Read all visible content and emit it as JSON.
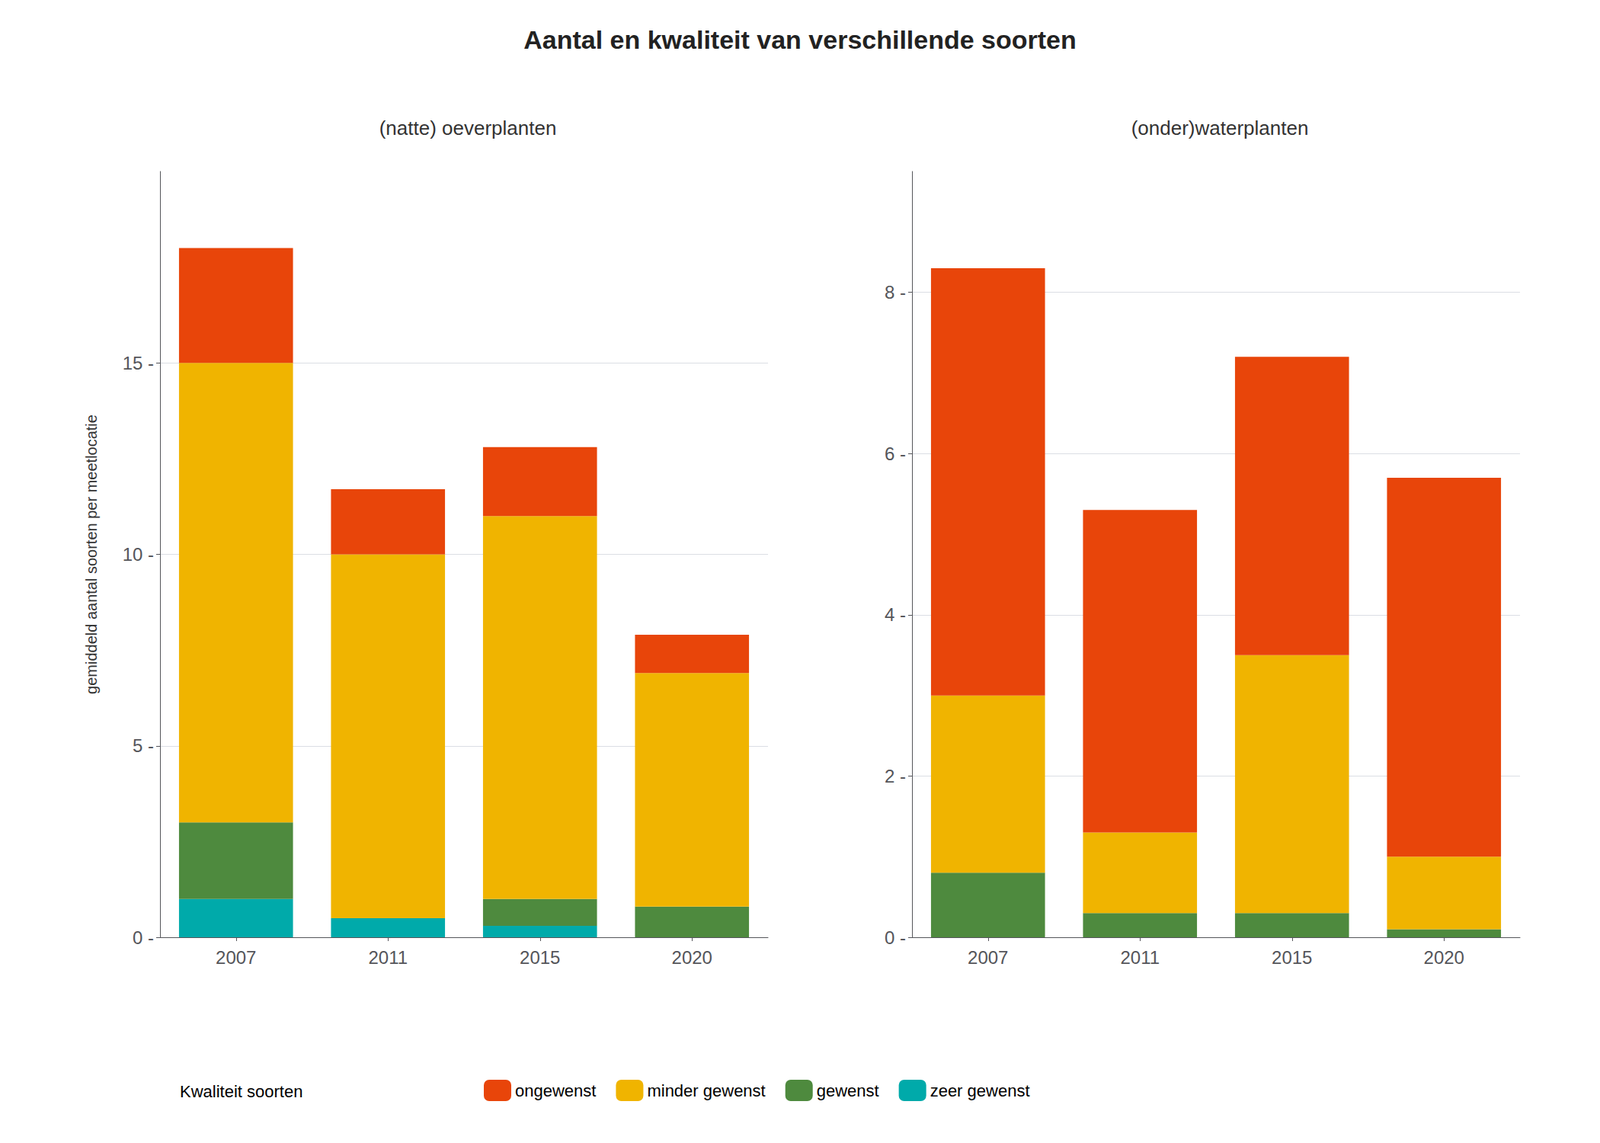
{
  "chart_data": [
    {
      "type": "bar",
      "title": "Aantal en kwaliteit van verschillende soorten",
      "subtitle": "(natte) oeverplanten",
      "y_label": "gemiddeld aantal soorten per meetlocatie",
      "legend_title": "Kwaliteit soorten",
      "categories": [
        "2007",
        "2011",
        "2015",
        "2020"
      ],
      "series": [
        {
          "name": "zeer gewenst",
          "color": "#00AAAA",
          "values": [
            1.0,
            0.5,
            0.3,
            0.0
          ]
        },
        {
          "name": "gewenst",
          "color": "#4E8A3E",
          "values": [
            2.0,
            0.0,
            0.7,
            0.8
          ]
        },
        {
          "name": "minder gewenst",
          "color": "#F0B400",
          "values": [
            12.0,
            9.5,
            10.0,
            6.1
          ]
        },
        {
          "name": "ongewenst",
          "color": "#E8450A",
          "values": [
            3.0,
            1.7,
            1.8,
            1.0
          ]
        }
      ],
      "ylim": [
        0,
        20
      ],
      "yticks": [
        {
          "value": 0,
          "label": "0 -"
        },
        {
          "value": 5,
          "label": "5 -"
        },
        {
          "value": 10,
          "label": "10 -"
        },
        {
          "value": 15,
          "label": "15 -"
        }
      ],
      "stacked": true,
      "grid": true,
      "legend": "bottom"
    },
    {
      "type": "bar",
      "subtitle": "(onder)waterplanten",
      "categories": [
        "2007",
        "2011",
        "2015",
        "2020"
      ],
      "series": [
        {
          "name": "zeer gewenst",
          "color": "#00AAAA",
          "values": [
            0.0,
            0.0,
            0.0,
            0.0
          ]
        },
        {
          "name": "gewenst",
          "color": "#4E8A3E",
          "values": [
            0.8,
            0.3,
            0.3,
            0.1
          ]
        },
        {
          "name": "minder gewenst",
          "color": "#F0B400",
          "values": [
            2.2,
            1.0,
            3.2,
            0.9
          ]
        },
        {
          "name": "ongewenst",
          "color": "#E8450A",
          "values": [
            5.3,
            4.0,
            3.7,
            4.7
          ]
        }
      ],
      "ylim": [
        0,
        9.5
      ],
      "yticks": [
        {
          "value": 0,
          "label": "0 -"
        },
        {
          "value": 2,
          "label": "2 -"
        },
        {
          "value": 4,
          "label": "4 -"
        },
        {
          "value": 6,
          "label": "6 -"
        },
        {
          "value": 8,
          "label": "8 -"
        }
      ],
      "stacked": true,
      "grid": true
    }
  ]
}
